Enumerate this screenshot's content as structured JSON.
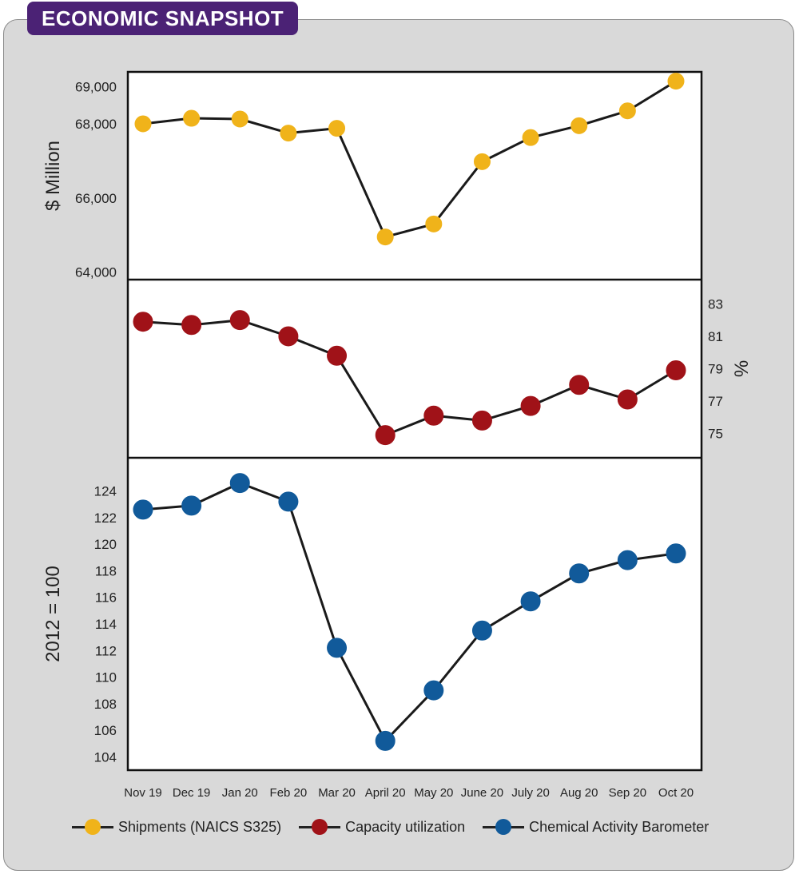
{
  "header": {
    "title": "ECONOMIC SNAPSHOT"
  },
  "colors": {
    "header": "#4b2275",
    "shipments": "#f0b31a",
    "capacity": "#a01218",
    "cab": "#115a9a"
  },
  "chart_data": [
    {
      "type": "line",
      "name": "Shipments (NAICS S325)",
      "ylabel": "$ Million",
      "ylim": [
        63800,
        69400
      ],
      "yticks": [
        64000,
        66000,
        68000,
        69000
      ],
      "ytick_labels": [
        "64,000",
        "66,000",
        "68,000",
        "69,000"
      ],
      "categories": [
        "Nov 19",
        "Dec 19",
        "Jan 20",
        "Feb 20",
        "Mar 20",
        "April 20",
        "May 20",
        "June 20",
        "July 20",
        "Aug 20",
        "Sep 20",
        "Oct 20"
      ],
      "values": [
        68000,
        68150,
        68130,
        67750,
        67880,
        64950,
        65300,
        66980,
        67630,
        67950,
        68350,
        69150
      ]
    },
    {
      "type": "line",
      "name": "Capacity utilization",
      "ylabel": "%",
      "ylim": [
        73.5,
        84.5
      ],
      "yticks": [
        75,
        77,
        79,
        81,
        83
      ],
      "ytick_labels": [
        "75",
        "77",
        "79",
        "81",
        "83"
      ],
      "categories": [
        "Nov 19",
        "Dec 19",
        "Jan 20",
        "Feb 20",
        "Mar 20",
        "April 20",
        "May 20",
        "June 20",
        "July 20",
        "Aug 20",
        "Sep 20",
        "Oct 20"
      ],
      "values": [
        81.9,
        81.7,
        82.0,
        81.0,
        79.8,
        74.9,
        76.1,
        75.8,
        76.7,
        78.0,
        77.1,
        78.9
      ]
    },
    {
      "type": "line",
      "name": "Chemical Activity Barometer",
      "ylabel": "2012 = 100",
      "ylim": [
        103,
        126.5
      ],
      "yticks": [
        104,
        106,
        108,
        110,
        112,
        114,
        116,
        118,
        120,
        122,
        124
      ],
      "ytick_labels": [
        "104",
        "106",
        "108",
        "110",
        "112",
        "114",
        "116",
        "118",
        "120",
        "122",
        "124"
      ],
      "categories": [
        "Nov 19",
        "Dec 19",
        "Jan 20",
        "Feb 20",
        "Mar 20",
        "April 20",
        "May 20",
        "June 20",
        "July 20",
        "Aug 20",
        "Sep 20",
        "Oct 20"
      ],
      "values": [
        122.6,
        122.9,
        124.6,
        123.2,
        112.2,
        105.2,
        109.0,
        113.5,
        115.7,
        117.8,
        118.8,
        119.3
      ]
    }
  ],
  "legend": {
    "items": [
      {
        "label": "Shipments (NAICS S325)"
      },
      {
        "label": "Capacity utilization"
      },
      {
        "label": "Chemical Activity Barometer"
      }
    ]
  }
}
